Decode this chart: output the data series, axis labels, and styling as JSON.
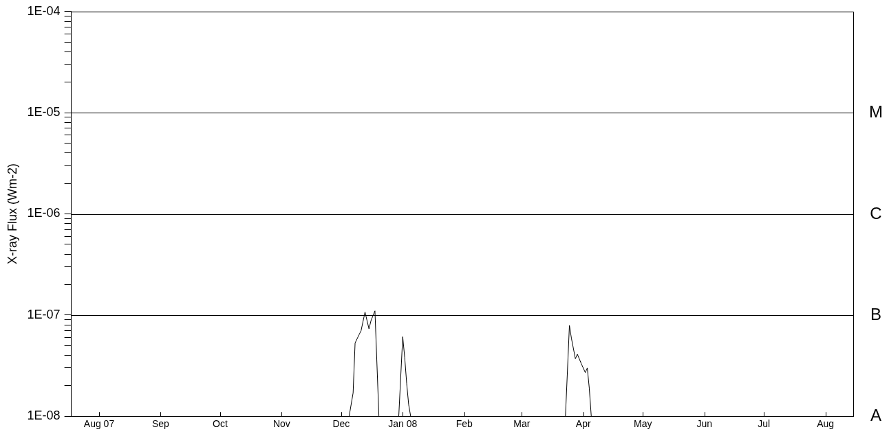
{
  "chart_data": {
    "type": "line",
    "ylabel": "X-ray Flux (Wm-2)",
    "log": "y",
    "grid": false,
    "legend": false,
    "marker": "none",
    "line_style": "solid",
    "xlim": [
      "2007-07-18",
      "2008-08-15"
    ],
    "xticks": [
      {
        "value": "2007-08-01",
        "label": "Aug 07"
      },
      {
        "value": "2007-09-01",
        "label": "Sep"
      },
      {
        "value": "2007-10-01",
        "label": "Oct"
      },
      {
        "value": "2007-11-01",
        "label": "Nov"
      },
      {
        "value": "2007-12-01",
        "label": "Dec"
      },
      {
        "value": "2008-01-01",
        "label": "Jan 08"
      },
      {
        "value": "2008-02-01",
        "label": "Feb"
      },
      {
        "value": "2008-03-01",
        "label": "Mar"
      },
      {
        "value": "2008-04-01",
        "label": "Apr"
      },
      {
        "value": "2008-05-01",
        "label": "May"
      },
      {
        "value": "2008-06-01",
        "label": "Jun"
      },
      {
        "value": "2008-07-01",
        "label": "Jul"
      },
      {
        "value": "2008-08-01",
        "label": "Aug"
      }
    ],
    "ylim": [
      1e-08,
      0.0001
    ],
    "yticks": [
      {
        "value": 1e-08,
        "label": "1E-08"
      },
      {
        "value": 2e-08,
        "label": null
      },
      {
        "value": 3e-08,
        "label": null
      },
      {
        "value": 4e-08,
        "label": null
      },
      {
        "value": 5e-08,
        "label": null
      },
      {
        "value": 6e-08,
        "label": null
      },
      {
        "value": 7e-08,
        "label": null
      },
      {
        "value": 8e-08,
        "label": null
      },
      {
        "value": 9e-08,
        "label": null
      },
      {
        "value": 1e-07,
        "label": "1E-07"
      },
      {
        "value": 2e-07,
        "label": null
      },
      {
        "value": 3e-07,
        "label": null
      },
      {
        "value": 4e-07,
        "label": null
      },
      {
        "value": 5e-07,
        "label": null
      },
      {
        "value": 6e-07,
        "label": null
      },
      {
        "value": 7e-07,
        "label": null
      },
      {
        "value": 8e-07,
        "label": null
      },
      {
        "value": 9e-07,
        "label": null
      },
      {
        "value": 1e-06,
        "label": "1E-06"
      },
      {
        "value": 2e-06,
        "label": null
      },
      {
        "value": 3e-06,
        "label": null
      },
      {
        "value": 4e-06,
        "label": null
      },
      {
        "value": 5e-06,
        "label": null
      },
      {
        "value": 6e-06,
        "label": null
      },
      {
        "value": 7e-06,
        "label": null
      },
      {
        "value": 8e-06,
        "label": null
      },
      {
        "value": 9e-06,
        "label": null
      },
      {
        "value": 1e-05,
        "label": "1E-05"
      },
      {
        "value": 2e-05,
        "label": null
      },
      {
        "value": 3e-05,
        "label": null
      },
      {
        "value": 4e-05,
        "label": null
      },
      {
        "value": 5e-05,
        "label": null
      },
      {
        "value": 6e-05,
        "label": null
      },
      {
        "value": 7e-05,
        "label": null
      },
      {
        "value": 8e-05,
        "label": null
      },
      {
        "value": 9e-05,
        "label": null
      },
      {
        "value": 0.0001,
        "label": "1E-04"
      }
    ],
    "ref_lines": [
      {
        "axis": "y",
        "value": 1e-05,
        "label": "M",
        "color": "#000000"
      },
      {
        "axis": "y",
        "value": 1e-06,
        "label": "C",
        "color": "#000000"
      },
      {
        "axis": "y",
        "value": 1e-07,
        "label": "B",
        "color": "#000000"
      }
    ],
    "annotations": [
      "A"
    ],
    "series": [
      {
        "color": "#000000",
        "x": [
          "2007-12-05",
          "2007-12-07",
          "2007-12-08",
          "2007-12-10",
          "2007-12-11",
          "2007-12-13",
          "2007-12-15",
          "2007-12-16",
          "2007-12-18",
          "2007-12-20",
          "2007-12-25",
          "2007-12-30",
          "2008-01-01",
          "2008-01-02",
          "2008-01-03",
          "2008-01-04",
          "2008-01-05",
          "2008-02-15",
          "2008-03-23",
          "2008-03-25",
          "2008-03-26",
          "2008-03-28",
          "2008-03-29",
          "2008-03-31",
          "2008-04-02",
          "2008-04-03",
          "2008-04-04",
          "2008-04-05"
        ],
        "values": [
          1e-08,
          1.7e-08,
          5.3e-08,
          6.4e-08,
          7e-08,
          1.07e-07,
          7.3e-08,
          8.8e-08,
          1.1e-07,
          1e-08,
          null,
          1e-08,
          6.1e-08,
          3.8e-08,
          2.1e-08,
          1.3e-08,
          1e-08,
          null,
          1e-08,
          7.9e-08,
          5.9e-08,
          3.7e-08,
          4.1e-08,
          3.3e-08,
          2.7e-08,
          3e-08,
          1.9e-08,
          1e-08
        ]
      }
    ]
  }
}
